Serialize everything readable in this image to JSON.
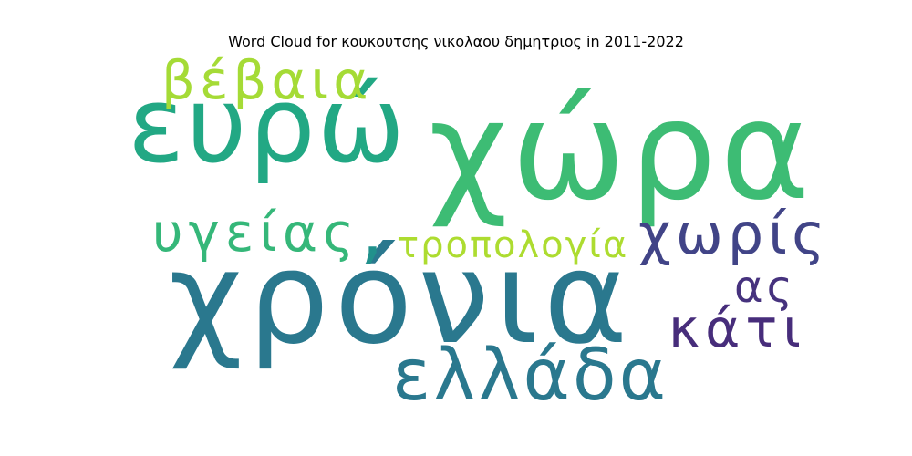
{
  "chart_data": {
    "type": "word-cloud",
    "title": "Word Cloud for κουκουτσης νικολαου δημητριος in 2011-2022",
    "words": [
      {
        "text": "χώρα",
        "weight": 1.0,
        "color": "#3dbc74"
      },
      {
        "text": "χρόνια",
        "weight": 0.92,
        "color": "#2a788e"
      },
      {
        "text": "ευρώ",
        "weight": 0.78,
        "color": "#22a884"
      },
      {
        "text": "ελλάδα",
        "weight": 0.55,
        "color": "#2a788e"
      },
      {
        "text": "βέβαια",
        "weight": 0.42,
        "color": "#a5db36"
      },
      {
        "text": "υγείας",
        "weight": 0.42,
        "color": "#35b779"
      },
      {
        "text": "χωρίς",
        "weight": 0.4,
        "color": "#414487"
      },
      {
        "text": "τροπολογία",
        "weight": 0.33,
        "color": "#addc30"
      },
      {
        "text": "κάτι",
        "weight": 0.37,
        "color": "#472d7b"
      },
      {
        "text": "ας",
        "weight": 0.33,
        "color": "#46327e"
      },
      {
        "text": ",",
        "weight": 0.3,
        "color": "#21918c"
      }
    ]
  }
}
